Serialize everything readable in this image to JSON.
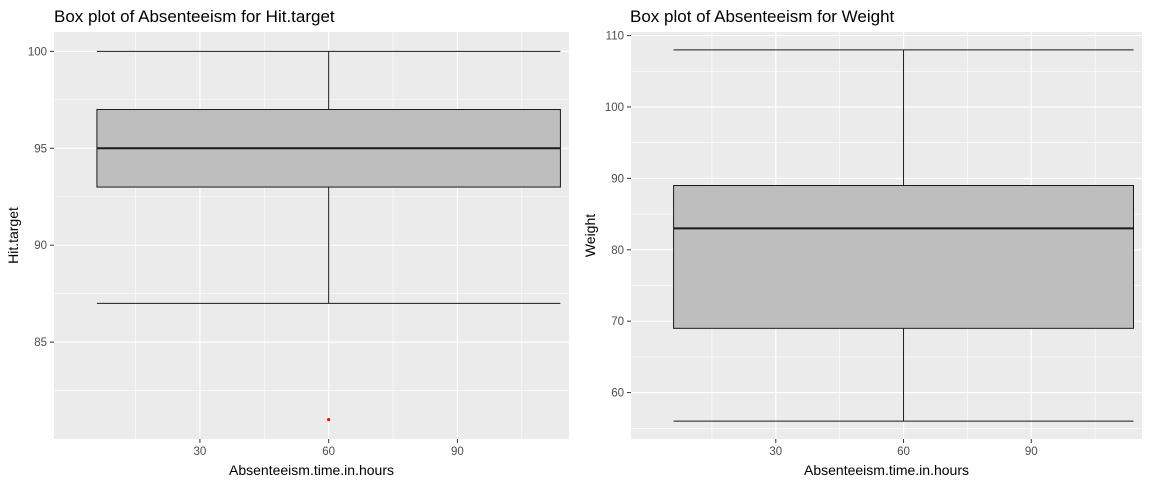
{
  "chart_data": [
    {
      "type": "box",
      "title": "Box plot of Absenteeism for Hit.target",
      "xlabel": "Absenteeism.time.in.hours",
      "ylabel": "Hit.target",
      "xlim": [
        -4,
        116
      ],
      "ylim": [
        80,
        101
      ],
      "x_ticks": [
        30,
        60,
        90
      ],
      "y_ticks": [
        85,
        90,
        95,
        100
      ],
      "grid": true,
      "box": {
        "x_center": 60,
        "x_min": 6,
        "x_max": 114,
        "whisker_low": 87,
        "q1": 93,
        "median": 95,
        "q3": 97,
        "whisker_high": 100
      },
      "outliers": [
        {
          "x": 60,
          "y": 81
        }
      ],
      "outlier_color": "#ff0000",
      "box_fill": "#bebebe"
    },
    {
      "type": "box",
      "title": "Box plot of Absenteeism for Weight",
      "xlabel": "Absenteeism.time.in.hours",
      "ylabel": "Weight",
      "xlim": [
        -4,
        116
      ],
      "ylim": [
        53.5,
        110.5
      ],
      "x_ticks": [
        30,
        60,
        90
      ],
      "y_ticks": [
        60,
        70,
        80,
        90,
        100,
        110
      ],
      "grid": true,
      "box": {
        "x_center": 60,
        "x_min": 6,
        "x_max": 114,
        "whisker_low": 56,
        "q1": 69,
        "median": 83,
        "q3": 89,
        "whisker_high": 108
      },
      "outliers": [],
      "outlier_color": "#ff0000",
      "box_fill": "#bebebe"
    }
  ]
}
